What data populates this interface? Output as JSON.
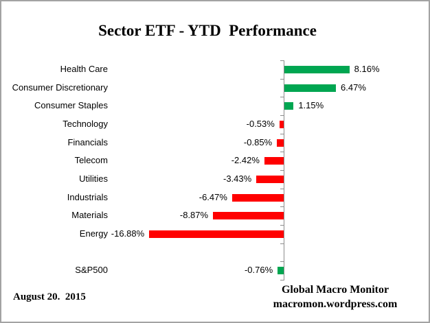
{
  "title": "Sector ETF - YTD  Performance",
  "colors": {
    "positive": "#00A651",
    "negative": "#FF0000",
    "axis": "#8C8C8C",
    "border": "#A3A3A3",
    "text": "#000000",
    "background": "#FFFFFF"
  },
  "chart_data": {
    "type": "bar",
    "orientation": "horizontal",
    "title": "Sector ETF - YTD  Performance",
    "xlabel": "",
    "ylabel": "",
    "value_unit": "percent",
    "baseline": 0,
    "gridlines": false,
    "legend": "none",
    "xlim": [
      -20,
      12
    ],
    "rows": [
      {
        "category": "Health Care",
        "value": 8.16,
        "label": "8.16%",
        "color": "#00A651"
      },
      {
        "category": "Consumer Discretionary",
        "value": 6.47,
        "label": "6.47%",
        "color": "#00A651"
      },
      {
        "category": "Consumer Staples",
        "value": 1.15,
        "label": "1.15%",
        "color": "#00A651"
      },
      {
        "category": "Technology",
        "value": -0.53,
        "label": "-0.53%",
        "color": "#FF0000"
      },
      {
        "category": "Financials",
        "value": -0.85,
        "label": "-0.85%",
        "color": "#FF0000"
      },
      {
        "category": "Telecom",
        "value": -2.42,
        "label": "-2.42%",
        "color": "#FF0000"
      },
      {
        "category": "Utilities",
        "value": -3.43,
        "label": "-3.43%",
        "color": "#FF0000"
      },
      {
        "category": "Industrials",
        "value": -6.47,
        "label": "-6.47%",
        "color": "#FF0000"
      },
      {
        "category": "Materials",
        "value": -8.87,
        "label": "-8.87%",
        "color": "#FF0000"
      },
      {
        "category": "Energy",
        "value": -16.88,
        "label": "-16.88%",
        "color": "#FF0000"
      },
      {
        "category": "",
        "value": null,
        "label": "",
        "color": null
      },
      {
        "category": "S&P500",
        "value": -0.76,
        "label": "-0.76%",
        "color": "#00A651"
      }
    ]
  },
  "footer": {
    "date": "August 20.  2015",
    "source_name": "Global Macro Monitor",
    "source_url": "macromon.wordpress.com"
  }
}
